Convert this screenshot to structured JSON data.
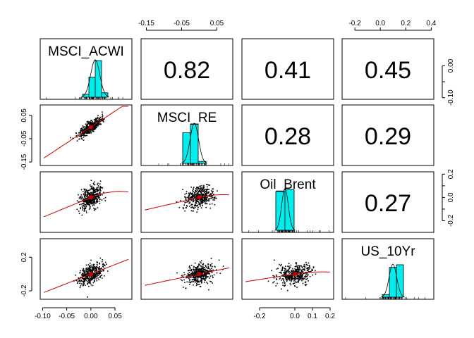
{
  "chart_data": {
    "type": "scatter",
    "variables": [
      "MSCI_ACWI",
      "MSCI_RE",
      "Oil_Brent",
      "US_10Yr"
    ],
    "correlations": [
      {
        "row": 0,
        "col": 1,
        "label": "0.82",
        "value": 0.82
      },
      {
        "row": 0,
        "col": 2,
        "label": "0.41",
        "value": 0.41
      },
      {
        "row": 0,
        "col": 3,
        "label": "0.45",
        "value": 0.45
      },
      {
        "row": 1,
        "col": 2,
        "label": "0.28",
        "value": 0.28
      },
      {
        "row": 1,
        "col": 3,
        "label": "0.29",
        "value": 0.29
      },
      {
        "row": 2,
        "col": 3,
        "label": "0.27",
        "value": 0.27
      }
    ],
    "axes": [
      {
        "var": "MSCI_ACWI",
        "lim": [
          -0.105,
          0.085
        ],
        "ticks": [
          -0.1,
          -0.05,
          0.0,
          0.05
        ],
        "tick_labels": [
          "-0.10",
          "-0.05",
          "0.00",
          "0.05"
        ],
        "side": "bottom",
        "extra_side": "right",
        "extra_ticks": [
          -0.1,
          -0.05,
          0.0
        ],
        "extra_tick_labels": [
          "-0.10",
          "0.00"
        ],
        "extra_labeled": [
          -0.1,
          0.0
        ]
      },
      {
        "var": "MSCI_RE",
        "lim": [
          -0.165,
          0.095
        ],
        "ticks": [
          -0.15,
          -0.05,
          0.05
        ],
        "tick_labels": [
          "-0.15",
          "-0.05",
          "0.05"
        ],
        "side": "top",
        "extra_side": "left",
        "extra_ticks": [
          -0.15,
          -0.05,
          0.05
        ]
      },
      {
        "var": "Oil_Brent",
        "lim": [
          -0.3,
          0.22
        ],
        "ticks": [
          -0.2,
          0.0,
          0.1,
          0.2
        ],
        "tick_labels": [
          "-0.2",
          "0.0",
          "0.1",
          "0.2"
        ],
        "side": "bottom",
        "extra_side": "right",
        "extra_ticks": [
          -0.2,
          -0.1,
          0.0,
          0.1,
          0.2
        ],
        "extra_tick_labels": [
          "-0.2",
          "0.0",
          "0.2"
        ],
        "extra_labeled": [
          -0.2,
          0.0,
          0.2
        ]
      },
      {
        "var": "US_10Yr",
        "lim": [
          -0.3,
          0.42
        ],
        "ticks": [
          -0.2,
          0.0,
          0.2,
          0.4
        ],
        "tick_labels": [
          "-0.2",
          "0.0",
          "0.2",
          "0.4"
        ],
        "side": "top",
        "extra_side": "left",
        "extra_ticks": [
          -0.2,
          0.2
        ],
        "extra_tick_labels": [
          "-0.2",
          "0.2"
        ]
      }
    ],
    "top_axes": [
      {
        "col": 1,
        "ticks": [
          -0.15,
          -0.05,
          0.05
        ],
        "tick_labels": [
          "-0.15",
          "-0.05",
          "0.05"
        ]
      },
      {
        "col": 3,
        "ticks": [
          -0.2,
          0.0,
          0.2,
          0.4
        ],
        "tick_labels": [
          "-0.2",
          "0.0",
          "0.2",
          "0.4"
        ]
      }
    ],
    "bottom_axes": [
      {
        "col": 0,
        "ticks": [
          -0.1,
          -0.05,
          0.0,
          0.05
        ],
        "tick_labels": [
          "-0.10",
          "-0.05",
          "0.00",
          "0.05"
        ]
      },
      {
        "col": 2,
        "ticks": [
          -0.2,
          0.0,
          0.1,
          0.2
        ],
        "tick_labels": [
          "-0.2",
          "0.0",
          "0.1",
          "0.2"
        ]
      }
    ],
    "left_axes": [
      {
        "row": 1,
        "ticks": [
          -0.15,
          -0.05,
          0.05
        ],
        "tick_labels": [
          "-0.15",
          "-0.05",
          "0.05"
        ]
      },
      {
        "row": 3,
        "ticks": [
          -0.2,
          0.2
        ],
        "tick_labels": [
          "-0.2",
          "0.2"
        ]
      }
    ],
    "right_axes": [
      {
        "row": 0,
        "ticks": [
          -0.1,
          -0.05,
          0.0
        ],
        "tick_labels": [
          "-0.10",
          "0.00"
        ],
        "labeled": [
          -0.1,
          0.0
        ]
      },
      {
        "row": 2,
        "ticks": [
          -0.2,
          -0.1,
          0.0,
          0.1,
          0.2
        ],
        "tick_labels": [
          "-0.2",
          "0.0",
          "0.2"
        ],
        "labeled": [
          -0.2,
          0.0,
          0.2
        ]
      }
    ],
    "histograms": [
      {
        "var": "MSCI_ACWI",
        "bins": [
          -0.02,
          -0.01,
          0.0,
          0.01,
          0.02
        ],
        "rel_heights": [
          0.08,
          0.55,
          1.0,
          0.12
        ]
      },
      {
        "var": "MSCI_RE",
        "bins": [
          -0.03,
          -0.01,
          0.01,
          0.03
        ],
        "rel_heights": [
          0.78,
          1.0,
          0.05
        ]
      },
      {
        "var": "Oil_Brent",
        "bins": [
          -0.05,
          0.0,
          0.05
        ],
        "rel_heights": [
          0.95,
          1.0
        ]
      },
      {
        "var": "US_10Yr",
        "bins": [
          -0.05,
          0.0,
          0.05,
          0.1
        ],
        "rel_heights": [
          0.08,
          0.92,
          1.0
        ]
      }
    ],
    "scatter_color": "#000000",
    "fit_color": "#cc0000",
    "hist_color": "#00eeee",
    "grid": false
  }
}
